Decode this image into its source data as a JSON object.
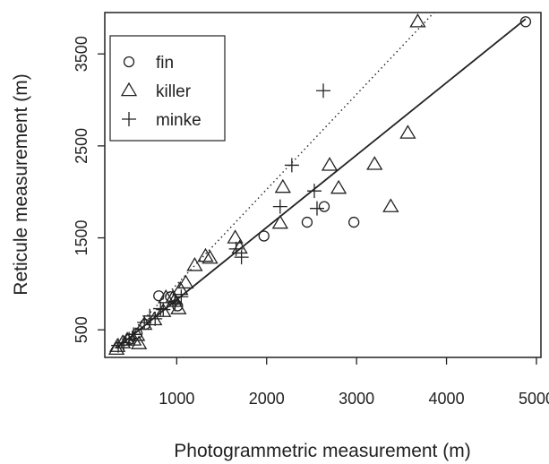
{
  "chart_data": {
    "type": "scatter",
    "title": "",
    "xlabel": "Photogrammetric measurement (m)",
    "ylabel": "Reticule measurement (m)",
    "xlim": [
      200,
      5050
    ],
    "ylim": [
      200,
      3950
    ],
    "xticks": [
      1000,
      2000,
      3000,
      4000,
      5000
    ],
    "yticks": [
      500,
      1500,
      2500,
      3500
    ],
    "legend_position": "top-left",
    "grid": false,
    "series": [
      {
        "name": "fin",
        "marker": "circle",
        "points": [
          [
            4880,
            3850
          ],
          [
            2450,
            1670
          ],
          [
            2640,
            1840
          ],
          [
            2970,
            1670
          ],
          [
            1970,
            1520
          ],
          [
            800,
            870
          ],
          [
            930,
            860
          ],
          [
            650,
            560
          ],
          [
            480,
            400
          ],
          [
            560,
            460
          ],
          [
            1010,
            760
          ]
        ]
      },
      {
        "name": "killer",
        "marker": "triangle",
        "points": [
          [
            3680,
            3850
          ],
          [
            3570,
            2640
          ],
          [
            2700,
            2290
          ],
          [
            3200,
            2300
          ],
          [
            2800,
            2040
          ],
          [
            2180,
            2050
          ],
          [
            2150,
            1660
          ],
          [
            3380,
            1840
          ],
          [
            1650,
            1500
          ],
          [
            1700,
            1390
          ],
          [
            1370,
            1280
          ],
          [
            1320,
            1300
          ],
          [
            1200,
            1200
          ],
          [
            1100,
            1010
          ],
          [
            1040,
            940
          ],
          [
            960,
            850
          ],
          [
            880,
            850
          ],
          [
            850,
            700
          ],
          [
            1020,
            730
          ],
          [
            970,
            810
          ],
          [
            750,
            610
          ],
          [
            640,
            560
          ],
          [
            560,
            440
          ],
          [
            520,
            390
          ],
          [
            580,
            350
          ],
          [
            450,
            390
          ],
          [
            400,
            360
          ],
          [
            340,
            320
          ],
          [
            330,
            290
          ]
        ]
      },
      {
        "name": "minke",
        "marker": "plus",
        "points": [
          [
            2630,
            3100
          ],
          [
            2280,
            2290
          ],
          [
            2150,
            1840
          ],
          [
            2560,
            1820
          ],
          [
            2530,
            2010
          ],
          [
            1720,
            1290
          ],
          [
            1660,
            1380
          ],
          [
            850,
            720
          ],
          [
            980,
            780
          ],
          [
            1050,
            860
          ],
          [
            760,
            620
          ],
          [
            820,
            730
          ],
          [
            700,
            650
          ],
          [
            640,
            580
          ],
          [
            520,
            450
          ],
          [
            470,
            400
          ],
          [
            410,
            360
          ],
          [
            350,
            330
          ]
        ]
      }
    ],
    "reference_lines": [
      {
        "style": "solid",
        "from": [
          330,
          300
        ],
        "to": [
          4880,
          3880
        ]
      },
      {
        "style": "dotted",
        "from": [
          330,
          300
        ],
        "to": [
          3860,
          3950
        ]
      }
    ]
  }
}
